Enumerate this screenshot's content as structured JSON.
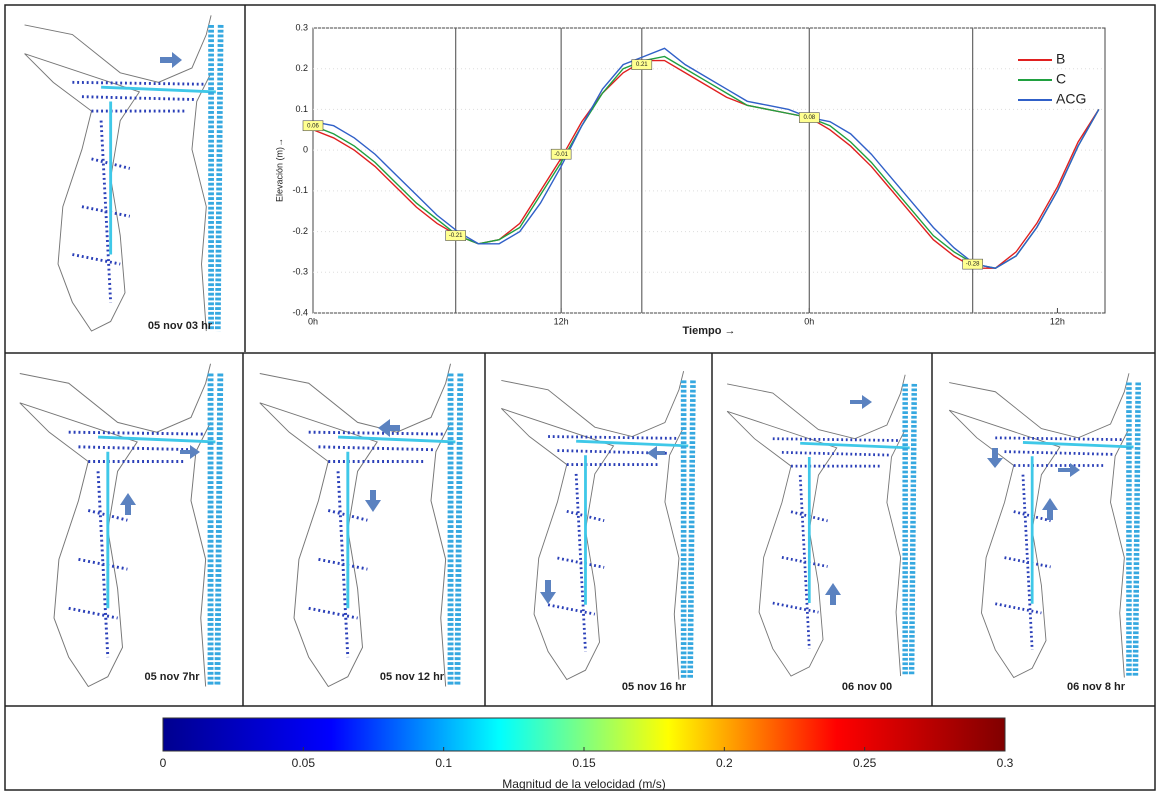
{
  "chart_data": [
    {
      "type": "line",
      "ylabel": "Elevación (m)→",
      "xlabel": "Tiempo →",
      "x": [
        0,
        1,
        2,
        3,
        4,
        5,
        6,
        7,
        8,
        9,
        10,
        11,
        12,
        13,
        14,
        15,
        16,
        17,
        18,
        19,
        20,
        21,
        22,
        23,
        24,
        25,
        26,
        27,
        28,
        29,
        30,
        31,
        32,
        33,
        34,
        35,
        36,
        37,
        38
      ],
      "xlim": [
        0,
        38.3
      ],
      "xticks": [
        {
          "value": 0,
          "label": "0h"
        },
        {
          "value": 12,
          "label": "12h"
        },
        {
          "value": 24,
          "label": "0h"
        },
        {
          "value": 36,
          "label": "12h"
        }
      ],
      "ylim": [
        -0.4,
        0.3
      ],
      "yticks": [
        -0.4,
        -0.3,
        -0.2,
        -0.1,
        0,
        0.1,
        0.2,
        0.3
      ],
      "grid": true,
      "legend": "upper right",
      "series": [
        {
          "name": "B",
          "color": "#e02020",
          "values": [
            0.05,
            0.03,
            0.0,
            -0.04,
            -0.09,
            -0.14,
            -0.18,
            -0.21,
            -0.23,
            -0.22,
            -0.18,
            -0.1,
            -0.02,
            0.07,
            0.14,
            0.19,
            0.22,
            0.22,
            0.19,
            0.16,
            0.13,
            0.11,
            0.1,
            0.09,
            0.08,
            0.05,
            0.01,
            -0.04,
            -0.1,
            -0.16,
            -0.22,
            -0.26,
            -0.29,
            -0.29,
            -0.25,
            -0.18,
            -0.09,
            0.02,
            0.1
          ]
        },
        {
          "name": "C",
          "color": "#20a040",
          "values": [
            0.06,
            0.04,
            0.01,
            -0.03,
            -0.08,
            -0.13,
            -0.17,
            -0.21,
            -0.23,
            -0.22,
            -0.19,
            -0.11,
            -0.03,
            0.06,
            0.14,
            0.2,
            0.22,
            0.23,
            0.2,
            0.17,
            0.14,
            0.11,
            0.1,
            0.09,
            0.08,
            0.06,
            0.02,
            -0.03,
            -0.09,
            -0.15,
            -0.21,
            -0.25,
            -0.28,
            -0.29,
            -0.26,
            -0.19,
            -0.1,
            0.01,
            0.1
          ]
        },
        {
          "name": "ACG",
          "color": "#3060c8",
          "values": [
            0.07,
            0.06,
            0.03,
            -0.01,
            -0.06,
            -0.11,
            -0.16,
            -0.2,
            -0.23,
            -0.23,
            -0.2,
            -0.13,
            -0.04,
            0.06,
            0.15,
            0.21,
            0.23,
            0.25,
            0.21,
            0.18,
            0.15,
            0.12,
            0.11,
            0.1,
            0.08,
            0.07,
            0.04,
            -0.01,
            -0.07,
            -0.13,
            -0.19,
            -0.24,
            -0.28,
            -0.29,
            -0.26,
            -0.19,
            -0.1,
            0.01,
            0.1
          ]
        }
      ],
      "annotations": [
        {
          "x": 0,
          "y": 0.06
        },
        {
          "x": 6.9,
          "y": -0.21
        },
        {
          "x": 12,
          "y": -0.01
        },
        {
          "x": 15.9,
          "y": 0.21
        },
        {
          "x": 24,
          "y": 0.08
        },
        {
          "x": 31.9,
          "y": -0.28
        }
      ]
    },
    {
      "type": "colorbar",
      "xlabel": "Magnitud de la velocidad (m/s)",
      "xlim": [
        0,
        0.3
      ],
      "xticks": [
        0,
        0.05,
        0.1,
        0.15,
        0.2,
        0.25,
        0.3
      ],
      "colors": [
        "#00008f",
        "#0000ff",
        "#00ffff",
        "#ffff00",
        "#ff0000",
        "#800000"
      ]
    }
  ],
  "panels": [
    "05 nov 03 hr",
    "05 nov 7hr",
    "05 nov 12 hr",
    "05 nov 16 hr",
    "06 nov 00",
    "06 nov 8 hr"
  ]
}
